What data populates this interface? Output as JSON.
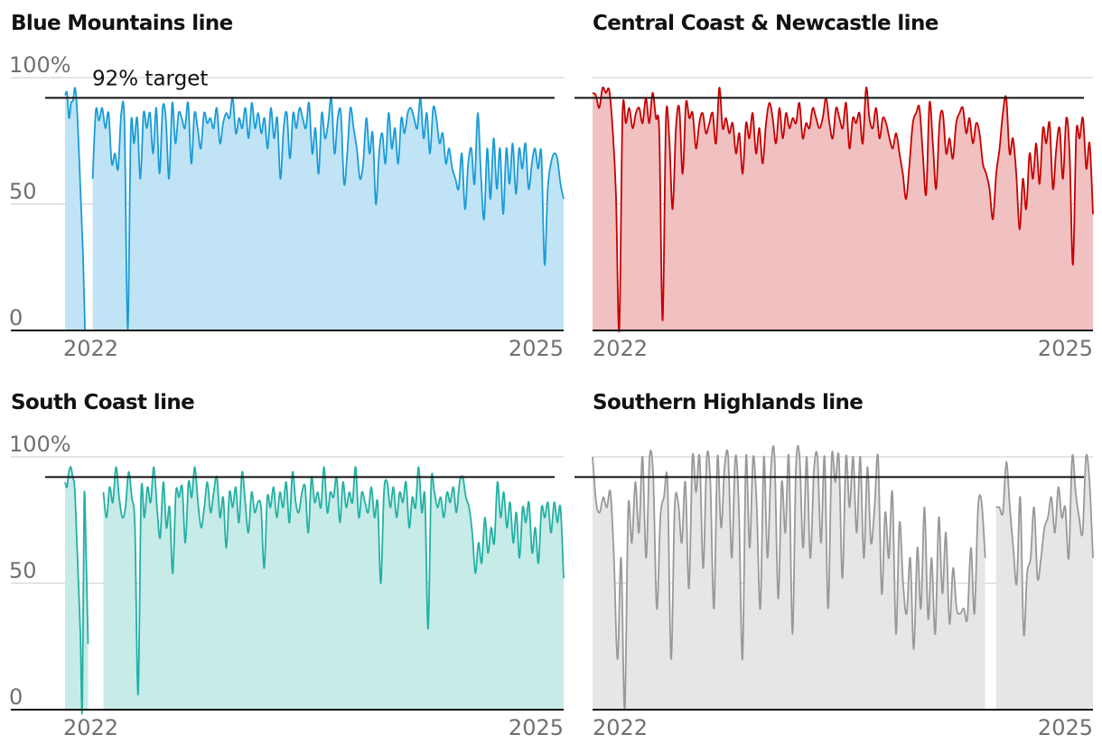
{
  "chart_data": [
    {
      "type": "area",
      "title": "Blue Mountains line",
      "ylim": [
        0,
        100
      ],
      "yticks": [
        "100%",
        "50",
        "0"
      ],
      "xticks": [
        "2022",
        "2025"
      ],
      "target": 92,
      "target_label": "92% target",
      "color": "#1a9bd7",
      "fill": "#c0e4f5",
      "x_start": 2021.8,
      "x_end": 2025.05,
      "segments": [
        {
          "x_start": 2021.8,
          "x_end": 2021.93,
          "values": [
            93,
            94,
            84,
            90,
            91,
            96,
            88,
            70,
            50,
            30,
            0
          ]
        },
        {
          "x_start": 2021.98,
          "x_end": 2025.05,
          "values": [
            60,
            87,
            83,
            88,
            80,
            86,
            66,
            70,
            64,
            86,
            82,
            0,
            80,
            74,
            84,
            60,
            86,
            80,
            86,
            70,
            88,
            62,
            88,
            84,
            60,
            90,
            74,
            86,
            84,
            80,
            90,
            66,
            86,
            80,
            72,
            86,
            82,
            84,
            80,
            88,
            74,
            82,
            86,
            84,
            92,
            78,
            84,
            80,
            88,
            76,
            90,
            80,
            86,
            78,
            84,
            72,
            88,
            76,
            84,
            60,
            80,
            86,
            68,
            86,
            80,
            88,
            84,
            80,
            90,
            70,
            80,
            62,
            86,
            76,
            82,
            92,
            70,
            84,
            86,
            58,
            70,
            88,
            80,
            72,
            60,
            66,
            84,
            70,
            78,
            50,
            70,
            78,
            66,
            86,
            72,
            80,
            66,
            84,
            78,
            86,
            88,
            84,
            80,
            92,
            76,
            86,
            70,
            88,
            84,
            74,
            78,
            66,
            72,
            64,
            60,
            56,
            70,
            48,
            66,
            72,
            58,
            86,
            62,
            44,
            72,
            52,
            76,
            56,
            72,
            46,
            72,
            58,
            74,
            54,
            72,
            64,
            74,
            56,
            66,
            72,
            64,
            70,
            26,
            56,
            66,
            70,
            68,
            58,
            52
          ]
        }
      ]
    },
    {
      "type": "area",
      "title": "Central Coast & Newcastle line",
      "ylim": [
        0,
        100
      ],
      "yticks": [],
      "xticks": [
        "2022",
        "2025"
      ],
      "target": 92,
      "target_label": "",
      "color": "#c70000",
      "fill": "#f1c0c1",
      "x_start": 2021.8,
      "x_end": 2025.05,
      "segments": [
        {
          "x_start": 2021.8,
          "x_end": 2025.05,
          "values": [
            94,
            93,
            88,
            96,
            94,
            95,
            80,
            54,
            0,
            86,
            82,
            88,
            80,
            86,
            88,
            82,
            92,
            82,
            94,
            84,
            78,
            4,
            84,
            76,
            48,
            80,
            88,
            62,
            90,
            84,
            86,
            72,
            82,
            86,
            78,
            82,
            86,
            74,
            96,
            80,
            84,
            78,
            82,
            70,
            78,
            62,
            82,
            76,
            86,
            70,
            80,
            66,
            82,
            90,
            84,
            74,
            88,
            76,
            86,
            80,
            84,
            82,
            90,
            76,
            82,
            80,
            88,
            84,
            80,
            84,
            92,
            82,
            76,
            88,
            84,
            80,
            90,
            72,
            84,
            82,
            86,
            74,
            96,
            84,
            80,
            88,
            76,
            84,
            82,
            76,
            72,
            78,
            70,
            62,
            52,
            66,
            82,
            86,
            88,
            70,
            54,
            90,
            74,
            56,
            82,
            86,
            70,
            76,
            68,
            82,
            86,
            88,
            78,
            84,
            74,
            82,
            78,
            66,
            62,
            56,
            44,
            62,
            72,
            86,
            92,
            70,
            76,
            62,
            40,
            60,
            48,
            70,
            60,
            74,
            58,
            80,
            74,
            82,
            56,
            72,
            80,
            60,
            84,
            70,
            26,
            78,
            76,
            84,
            64,
            74,
            46
          ]
        }
      ]
    },
    {
      "type": "area",
      "title": "South Coast line",
      "ylim": [
        0,
        100
      ],
      "yticks": [
        "100%",
        "50",
        "0"
      ],
      "xticks": [
        "2022",
        "2025"
      ],
      "target": 92,
      "target_label": "",
      "color": "#22b1a4",
      "fill": "#c7ebe7",
      "x_start": 2021.8,
      "x_end": 2025.05,
      "segments": [
        {
          "x_start": 2021.8,
          "x_end": 2021.95,
          "values": [
            90,
            88,
            94,
            96,
            92,
            88,
            70,
            50,
            30,
            0,
            84,
            60,
            26
          ]
        },
        {
          "x_start": 2022.05,
          "x_end": 2025.05,
          "values": [
            86,
            76,
            88,
            82,
            96,
            84,
            76,
            80,
            94,
            84,
            72,
            6,
            86,
            76,
            88,
            82,
            96,
            80,
            68,
            90,
            72,
            80,
            54,
            86,
            84,
            88,
            66,
            90,
            84,
            96,
            82,
            72,
            80,
            90,
            78,
            86,
            92,
            76,
            84,
            64,
            86,
            80,
            88,
            74,
            94,
            82,
            70,
            86,
            78,
            82,
            80,
            56,
            84,
            80,
            88,
            76,
            86,
            80,
            90,
            74,
            94,
            82,
            78,
            86,
            88,
            70,
            92,
            82,
            86,
            80,
            96,
            78,
            86,
            84,
            92,
            74,
            90,
            80,
            86,
            82,
            96,
            76,
            86,
            82,
            78,
            88,
            76,
            82,
            50,
            86,
            90,
            80,
            88,
            76,
            86,
            82,
            90,
            72,
            84,
            80,
            96,
            78,
            84,
            32,
            90,
            86,
            80,
            84,
            76,
            86,
            82,
            88,
            78,
            90,
            92,
            84,
            80,
            70,
            54,
            66,
            58,
            76,
            62,
            72,
            66,
            90,
            76,
            86,
            72,
            82,
            66,
            78,
            60,
            80,
            74,
            82,
            62,
            72,
            58,
            80,
            76,
            82,
            70,
            82,
            74,
            80,
            52
          ]
        }
      ]
    },
    {
      "type": "area",
      "title": "Southern Highlands line",
      "ylim": [
        0,
        100
      ],
      "yticks": [],
      "xticks": [
        "2022",
        "2025"
      ],
      "target": 92,
      "target_label": "",
      "color": "#999999",
      "fill": "#e6e6e6",
      "x_start": 2021.8,
      "x_end": 2025.05,
      "segments": [
        {
          "x_start": 2021.8,
          "x_end": 2024.35,
          "values": [
            100,
            82,
            78,
            84,
            80,
            86,
            60,
            20,
            60,
            0,
            80,
            66,
            90,
            70,
            100,
            60,
            100,
            92,
            40,
            76,
            84,
            90,
            20,
            80,
            82,
            66,
            90,
            48,
            100,
            86,
            100,
            56,
            100,
            90,
            40,
            100,
            72,
            96,
            100,
            60,
            100,
            80,
            20,
            100,
            64,
            100,
            80,
            40,
            100,
            60,
            96,
            100,
            44,
            90,
            70,
            100,
            30,
            96,
            100,
            64,
            100,
            60,
            94,
            100,
            66,
            100,
            40,
            100,
            90,
            100,
            52,
            100,
            80,
            100,
            70,
            100,
            60,
            96,
            66,
            80,
            100,
            46,
            78,
            60,
            86,
            30,
            74,
            50,
            38,
            60,
            24,
            64,
            40,
            80,
            36,
            60,
            30,
            76,
            46,
            70,
            34,
            56,
            40,
            38,
            40,
            36,
            64,
            38,
            80,
            82,
            60
          ]
        },
        {
          "x_start": 2024.42,
          "x_end": 2025.05,
          "values": [
            80,
            80,
            78,
            98,
            80,
            64,
            50,
            84,
            30,
            54,
            60,
            80,
            52,
            60,
            72,
            76,
            84,
            70,
            88,
            76,
            80,
            60,
            100,
            86,
            76,
            70,
            100,
            90,
            60
          ]
        }
      ]
    }
  ]
}
